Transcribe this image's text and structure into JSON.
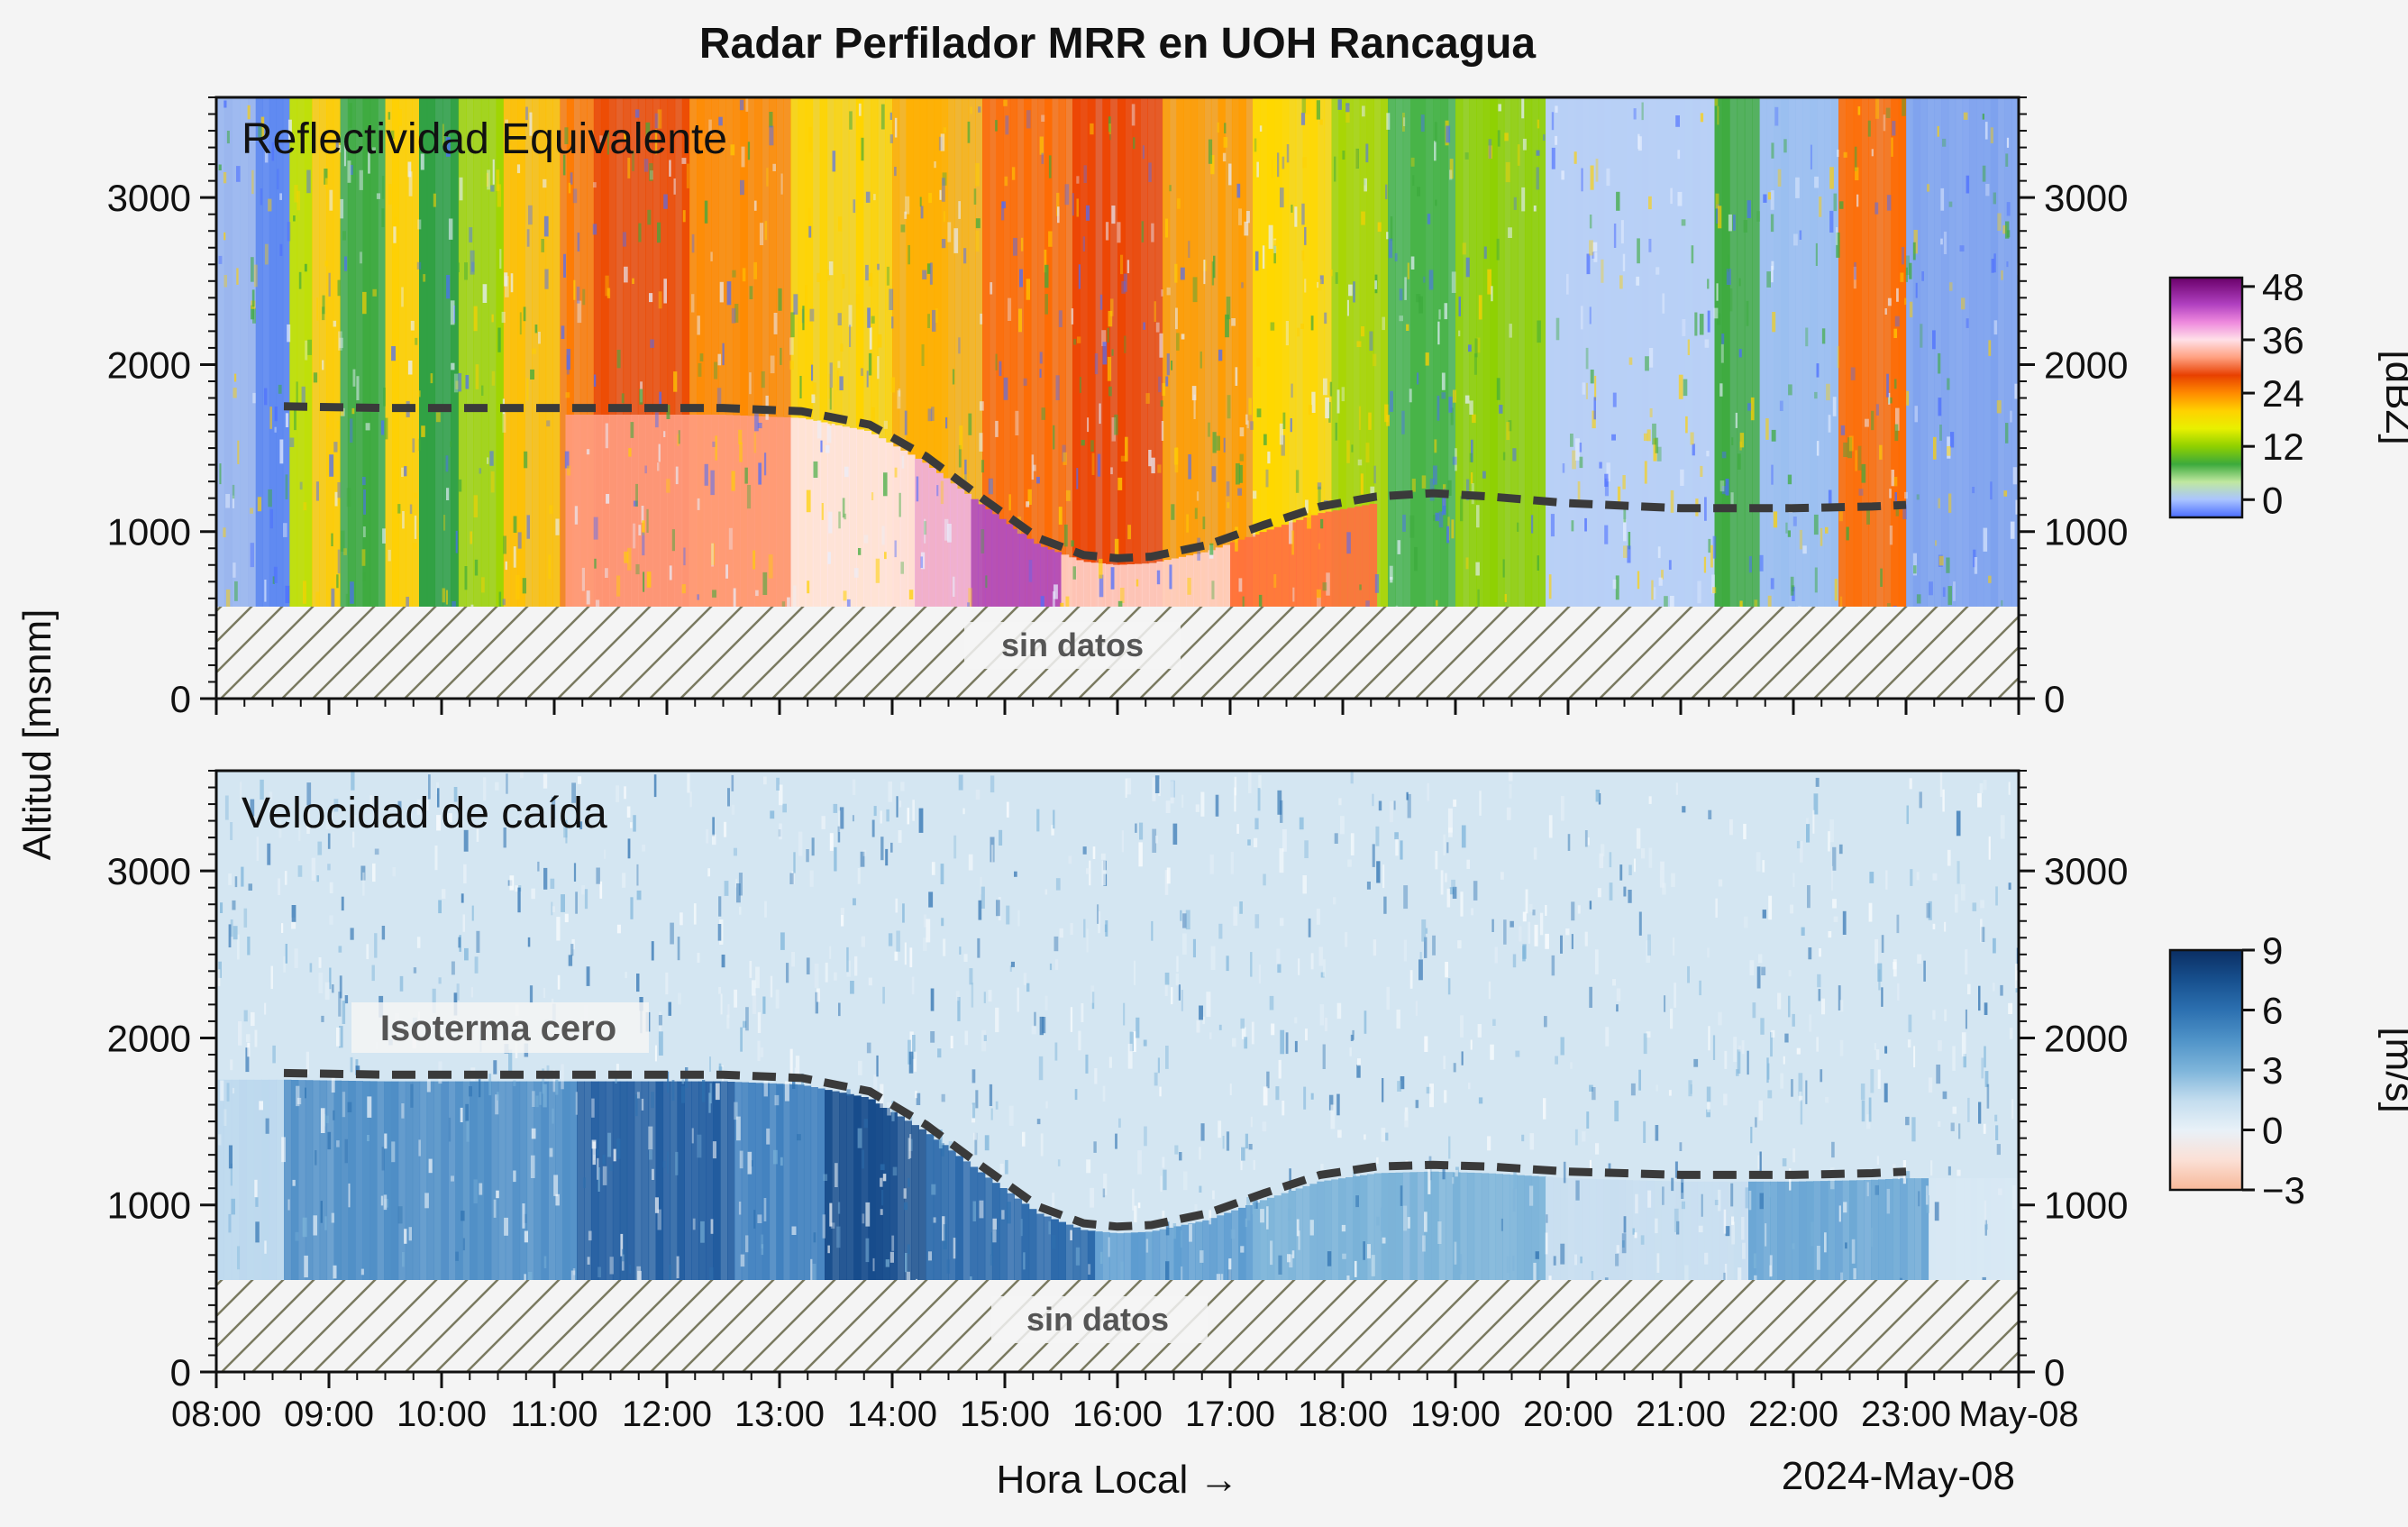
{
  "figure": {
    "title": "Radar Perfilador MRR en UOH Rancagua",
    "ylabel": "Altitud [msnm]",
    "xlabel": "Hora Local →",
    "date_label": "2024-May-08",
    "no_data_label": "sin datos",
    "isotherm_label": "Isoterma cero",
    "colors": {
      "background": "#f4f4f4",
      "isotherm_line": "#3a3a3a",
      "hatch": "#7a7a60"
    }
  },
  "chart_data": [
    {
      "type": "heatmap",
      "title": "Reflectividad Equivalente",
      "xlabel": "Hora Local →",
      "ylabel": "Altitud [msnm]",
      "xlim": [
        "08:00",
        "24:00"
      ],
      "ylim": [
        0,
        3600
      ],
      "x_ticks": [
        "08:00",
        "09:00",
        "10:00",
        "11:00",
        "12:00",
        "13:00",
        "14:00",
        "15:00",
        "16:00",
        "17:00",
        "18:00",
        "19:00",
        "20:00",
        "21:00",
        "22:00",
        "23:00",
        "May-08"
      ],
      "y_ticks": [
        0,
        1000,
        2000,
        3000
      ],
      "no_data_below_m": 550,
      "colorbar": {
        "label": "[dBZ]",
        "ticks": [
          0,
          12,
          24,
          36,
          48
        ],
        "range": [
          -4,
          50
        ],
        "stops": [
          [
            "-4",
            "#4a6cff"
          ],
          [
            "0",
            "#aac4ff"
          ],
          [
            "4",
            "#c0e8a0"
          ],
          [
            "8",
            "#3caa3c"
          ],
          [
            "12",
            "#8fd000"
          ],
          [
            "16",
            "#e8f000"
          ],
          [
            "20",
            "#ffd200"
          ],
          [
            "24",
            "#ff8a00"
          ],
          [
            "28",
            "#e84000"
          ],
          [
            "32",
            "#ffa080"
          ],
          [
            "36",
            "#ffe0e8"
          ],
          [
            "40",
            "#ee88dd"
          ],
          [
            "44",
            "#b040c0"
          ],
          [
            "50",
            "#6a006a"
          ]
        ]
      },
      "isotherm_zero": {
        "hours": [
          8.6,
          9.5,
          10.5,
          11.5,
          12.5,
          13.2,
          13.8,
          14.3,
          14.8,
          15.3,
          15.7,
          16.0,
          16.3,
          16.8,
          17.3,
          17.8,
          18.3,
          18.8,
          19.3,
          20.0,
          21.0,
          22.0,
          22.7,
          23.0
        ],
        "alt_m": [
          1750,
          1740,
          1740,
          1740,
          1740,
          1720,
          1640,
          1450,
          1200,
          960,
          860,
          840,
          850,
          920,
          1040,
          1150,
          1210,
          1230,
          1210,
          1170,
          1140,
          1140,
          1150,
          1160
        ]
      },
      "field": {
        "time_bands": [
          [
            8.0,
            8.35,
            "#9ab6ee"
          ],
          [
            8.35,
            8.65,
            "#5b86f0"
          ],
          [
            8.65,
            8.85,
            "#c0e000"
          ],
          [
            8.85,
            9.1,
            "#ffcc00"
          ],
          [
            9.1,
            9.5,
            "#3caa3c"
          ],
          [
            9.5,
            9.8,
            "#ffd000"
          ],
          [
            9.8,
            10.15,
            "#2ea040"
          ],
          [
            10.15,
            10.55,
            "#a0d400"
          ],
          [
            10.55,
            11.05,
            "#ffc000"
          ],
          [
            11.05,
            11.35,
            "#ff7a00"
          ],
          [
            11.35,
            12.2,
            "#ee4a00"
          ],
          [
            12.2,
            13.1,
            "#ff8a00"
          ],
          [
            13.1,
            14.0,
            "#ffd400"
          ],
          [
            14.0,
            14.8,
            "#ffb000"
          ],
          [
            14.8,
            15.6,
            "#ff6a00"
          ],
          [
            15.6,
            16.4,
            "#ee4400"
          ],
          [
            16.4,
            17.2,
            "#ff9c00"
          ],
          [
            17.2,
            17.9,
            "#ffd800"
          ],
          [
            17.9,
            18.4,
            "#a8d600"
          ],
          [
            18.4,
            19.0,
            "#48b448"
          ],
          [
            19.0,
            19.8,
            "#8fd000"
          ],
          [
            19.8,
            21.3,
            "#b8d0f6"
          ],
          [
            21.3,
            21.7,
            "#3caa3c"
          ],
          [
            21.7,
            22.4,
            "#9abef0"
          ],
          [
            22.4,
            23.0,
            "#ff6a00"
          ],
          [
            23.0,
            24.0,
            "#7ea2ee"
          ]
        ],
        "melting_layer": [
          [
            11.1,
            13.1,
            "#ff9c80"
          ],
          [
            13.1,
            14.2,
            "#ffe4ea"
          ],
          [
            14.2,
            14.7,
            "#f0b0e0"
          ],
          [
            14.7,
            15.5,
            "#b04cc4"
          ],
          [
            15.5,
            17.0,
            "#ffd0c8"
          ],
          [
            17.0,
            18.3,
            "#ff7040"
          ]
        ]
      }
    },
    {
      "type": "heatmap",
      "title": "Velocidad de caída",
      "xlabel": "Hora Local →",
      "ylabel": "Altitud [msnm]",
      "xlim": [
        "08:00",
        "24:00"
      ],
      "ylim": [
        0,
        3600
      ],
      "x_ticks": [
        "08:00",
        "09:00",
        "10:00",
        "11:00",
        "12:00",
        "13:00",
        "14:00",
        "15:00",
        "16:00",
        "17:00",
        "18:00",
        "19:00",
        "20:00",
        "21:00",
        "22:00",
        "23:00",
        "May-08"
      ],
      "y_ticks": [
        0,
        1000,
        2000,
        3000
      ],
      "no_data_below_m": 550,
      "colorbar": {
        "label": "[m/s]",
        "ticks": [
          -3,
          0,
          3,
          6,
          9
        ],
        "range": [
          -3,
          9
        ],
        "stops": [
          [
            "-3",
            "#f7b899"
          ],
          [
            "-1.5",
            "#fbe0d6"
          ],
          [
            "0",
            "#e8f1f8"
          ],
          [
            "1.5",
            "#c2dcee"
          ],
          [
            "3",
            "#7db4da"
          ],
          [
            "4.5",
            "#4f93c8"
          ],
          [
            "6",
            "#2c70b0"
          ],
          [
            "7.5",
            "#17508e"
          ],
          [
            "9",
            "#0b2e63"
          ]
        ]
      },
      "isotherm_zero": {
        "hours": [
          8.6,
          9.5,
          10.5,
          11.5,
          12.5,
          13.2,
          13.8,
          14.3,
          14.8,
          15.3,
          15.7,
          16.0,
          16.3,
          16.8,
          17.3,
          17.8,
          18.3,
          18.8,
          19.3,
          20.0,
          21.0,
          22.0,
          22.7,
          23.0
        ],
        "alt_m": [
          1790,
          1780,
          1780,
          1780,
          1780,
          1760,
          1680,
          1480,
          1230,
          990,
          890,
          870,
          880,
          950,
          1070,
          1180,
          1230,
          1240,
          1230,
          1200,
          1180,
          1180,
          1190,
          1200
        ]
      },
      "field": {
        "time_bands": [
          [
            8.0,
            8.6,
            "#bcd8ee"
          ],
          [
            8.6,
            11.2,
            "#4f8ec6"
          ],
          [
            11.2,
            12.6,
            "#1f5a9e"
          ],
          [
            12.6,
            13.4,
            "#3f7fbe"
          ],
          [
            13.4,
            14.3,
            "#174c8c"
          ],
          [
            14.3,
            15.8,
            "#2a68aa"
          ],
          [
            15.8,
            17.2,
            "#5d9cd0"
          ],
          [
            17.2,
            19.8,
            "#7ab2d8"
          ],
          [
            19.8,
            21.6,
            "#c8def0"
          ],
          [
            21.6,
            23.2,
            "#6aa6d4"
          ],
          [
            23.2,
            24.0,
            "#d8e8f4"
          ]
        ]
      }
    }
  ]
}
